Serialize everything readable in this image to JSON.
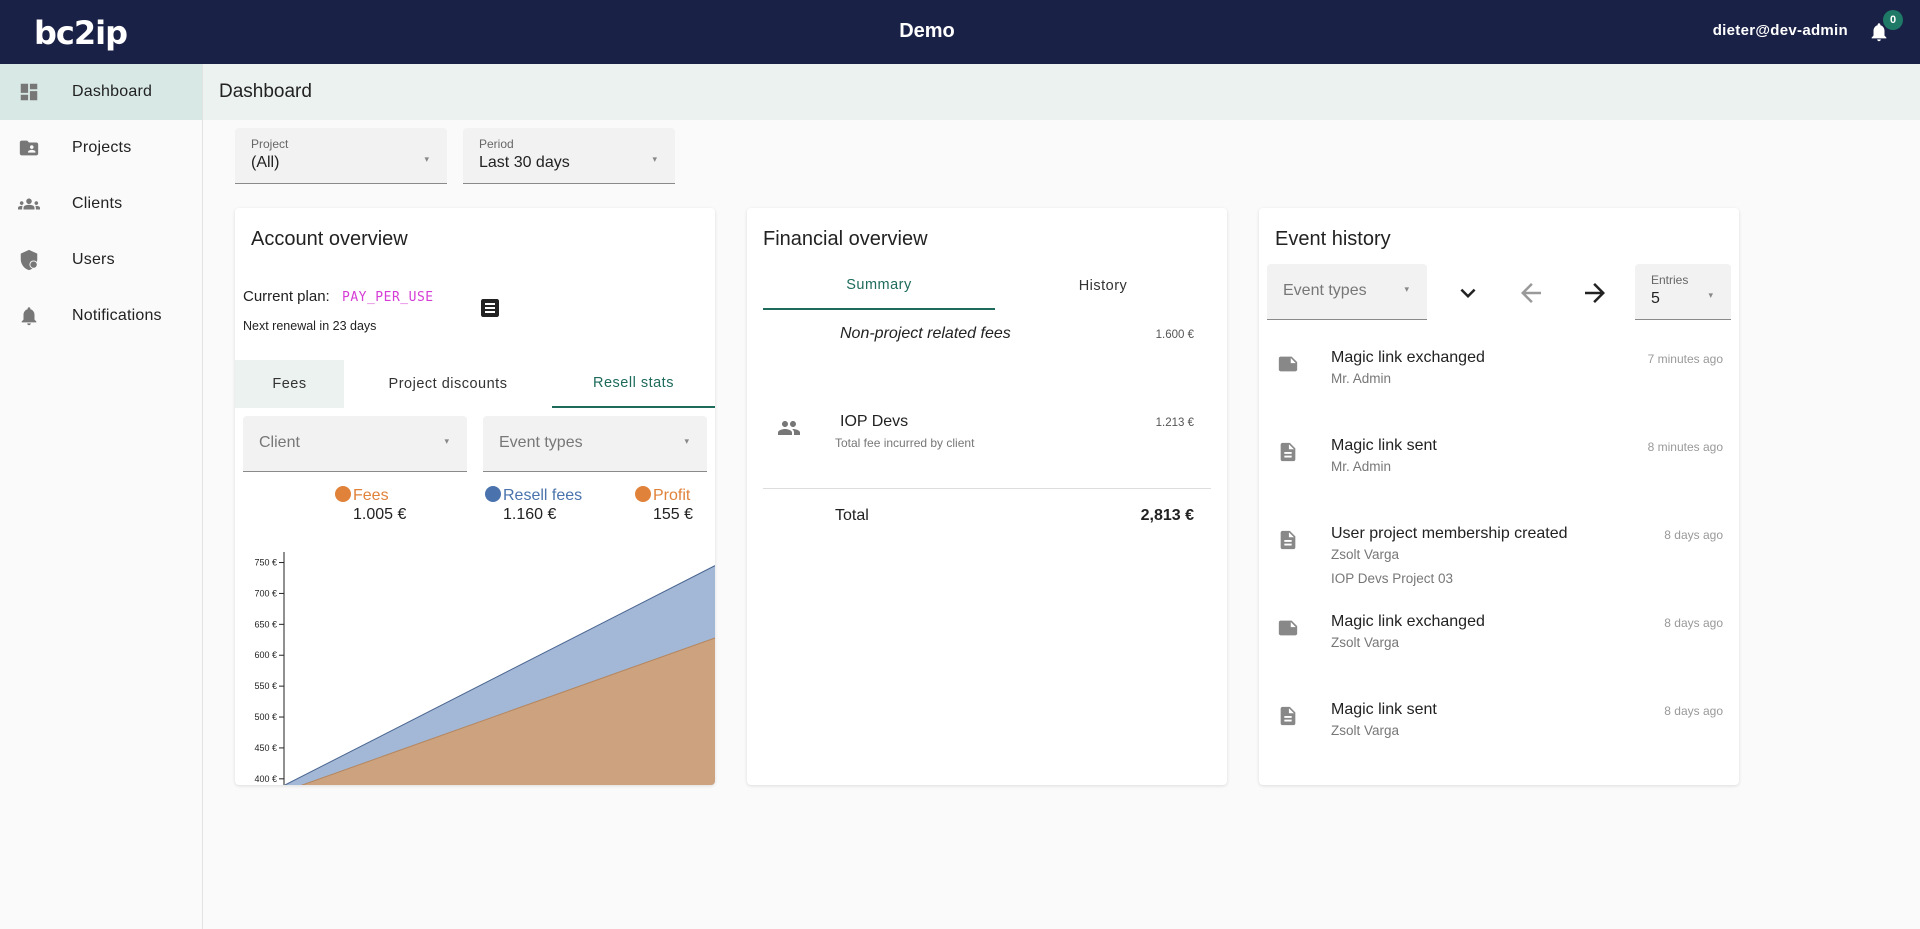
{
  "app": {
    "logo_text": "bc2ip",
    "title": "Demo",
    "user_email": "dieter@dev-admin",
    "notification_count": "0"
  },
  "sidebar": {
    "items": [
      {
        "label": "Dashboard",
        "icon": "dashboard-icon",
        "active": true
      },
      {
        "label": "Projects",
        "icon": "folder-shared-icon"
      },
      {
        "label": "Clients",
        "icon": "group-icon"
      },
      {
        "label": "Users",
        "icon": "shield-user-icon"
      },
      {
        "label": "Notifications",
        "icon": "bell-icon"
      }
    ]
  },
  "page": {
    "title": "Dashboard"
  },
  "filters": {
    "project": {
      "label": "Project",
      "value": "(All)"
    },
    "period": {
      "label": "Period",
      "value": "Last 30 days"
    }
  },
  "account_overview": {
    "title": "Account overview",
    "current_plan_label": "Current plan:",
    "current_plan_value": "PAY_PER_USE",
    "renewal": "Next renewal in 23 days",
    "tabs": [
      "Fees",
      "Project discounts",
      "Resell stats"
    ],
    "active_tab": "Resell stats",
    "client_placeholder": "Client",
    "event_types_placeholder": "Event types",
    "legend": [
      {
        "name": "Fees",
        "value": "1.005 €",
        "color": "#e0823a"
      },
      {
        "name": "Resell fees",
        "value": "1.160 €",
        "color": "#4a73ad"
      },
      {
        "name": "Profit",
        "value": "155 €",
        "color": "#e0823a"
      }
    ]
  },
  "chart_data": {
    "type": "area",
    "y_tick_labels": [
      "750 €",
      "700 €",
      "650 €",
      "600 €",
      "550 €",
      "500 €",
      "450 €",
      "400 €"
    ],
    "ylim": [
      390,
      780
    ],
    "grid": false,
    "series": [
      {
        "name": "Resell fees",
        "color": "#a3b8d6",
        "stroke": "#4a6591",
        "start": 390,
        "end": 745
      },
      {
        "name": "Fees",
        "color": "#cda37f",
        "stroke": "#b5865e",
        "start": 380,
        "end": 628
      }
    ]
  },
  "financial_overview": {
    "title": "Financial overview",
    "tabs": [
      "Summary",
      "History"
    ],
    "active_tab": "Summary",
    "rows": [
      {
        "label": "Non-project related fees",
        "amount": "1.600 €"
      },
      {
        "label": "IOP Devs",
        "sub": "Total fee incurred by client",
        "amount": "1.213 €",
        "icon": "people-icon"
      }
    ],
    "total_label": "Total",
    "total_value": "2,813 €"
  },
  "event_history": {
    "title": "Event history",
    "event_types_placeholder": "Event types",
    "entries_label": "Entries",
    "entries_value": "5",
    "events": [
      {
        "title": "Magic link exchanged",
        "sub": "Mr. Admin",
        "time": "7 minutes ago",
        "icon": "note-icon"
      },
      {
        "title": "Magic link sent",
        "sub": "Mr. Admin",
        "time": "8 minutes ago",
        "icon": "document-icon"
      },
      {
        "title": "User project membership created",
        "sub": "Zsolt Varga",
        "sub2": "IOP Devs Project 03",
        "time": "8 days ago",
        "icon": "document-icon"
      },
      {
        "title": "Magic link exchanged",
        "sub": "Zsolt Varga",
        "time": "8 days ago",
        "icon": "note-icon"
      },
      {
        "title": "Magic link sent",
        "sub": "Zsolt Varga",
        "time": "8 days ago",
        "icon": "document-icon"
      }
    ]
  }
}
